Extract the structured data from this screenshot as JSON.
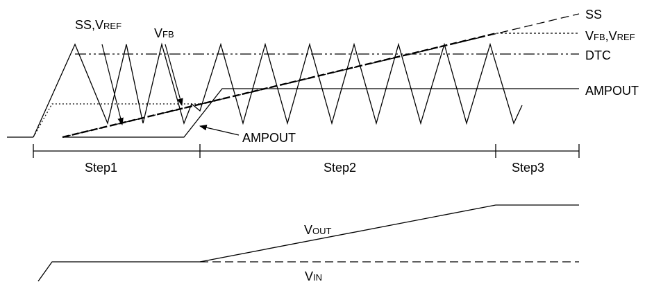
{
  "labels": {
    "right": {
      "ss": "SS",
      "vfb_vref": {
        "v1": "V",
        "s1": "FB",
        "sep": ",",
        "v2": "V",
        "s2": "REF"
      },
      "dtc": "DTC",
      "ampout": "AMPOUT"
    },
    "annotations": {
      "ss_vref": {
        "pre": "SS,",
        "v": "V",
        "sub": "REF"
      },
      "vfb": {
        "v": "V",
        "sub": "FB"
      },
      "ampout": "AMPOUT"
    },
    "steps": [
      "Step1",
      "Step2",
      "Step3"
    ],
    "vout": {
      "v": "V",
      "sub": "OUT"
    },
    "vin": {
      "v": "V",
      "sub": "IN"
    }
  },
  "colors": {
    "line": "#000000",
    "background": "#ffffff"
  }
}
